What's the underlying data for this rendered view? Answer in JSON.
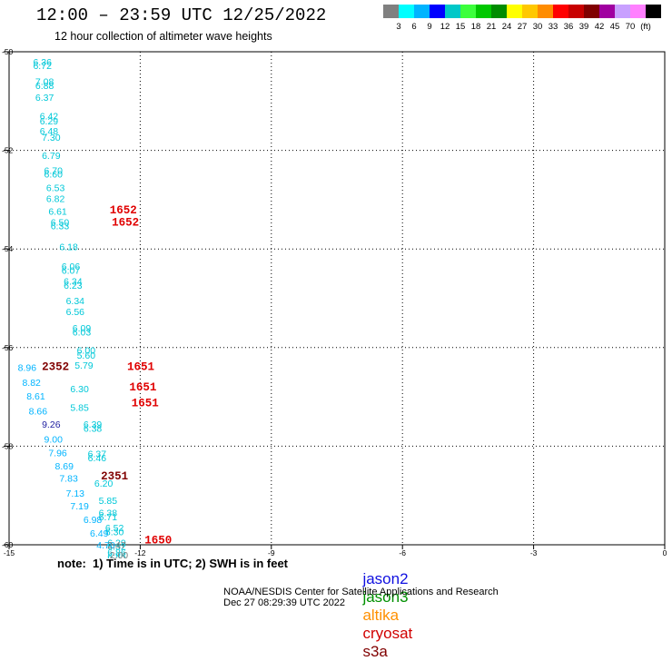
{
  "header": {
    "title": "12:00 – 23:59 UTC 12/25/2022",
    "subtitle": "12 hour collection of altimeter wave heights"
  },
  "colorbar": {
    "colors": [
      "#808080",
      "#00ffff",
      "#00b4ff",
      "#0000ff",
      "#00c8c8",
      "#3cff3c",
      "#00c800",
      "#008c00",
      "#ffff00",
      "#ffc800",
      "#ff8c00",
      "#ff0000",
      "#c80000",
      "#800000",
      "#a000a0",
      "#c8a0ff",
      "#ff80ff",
      "#000000"
    ],
    "labels": [
      "3",
      "6",
      "9",
      "12",
      "15",
      "18",
      "21",
      "24",
      "27",
      "30",
      "33",
      "36",
      "39",
      "42",
      "45",
      "70",
      "(ft)"
    ]
  },
  "chart_data": {
    "type": "scatter",
    "title": "12:00 – 23:59 UTC 12/25/2022",
    "xlim": [
      -15,
      0
    ],
    "ylim": [
      -60,
      -50
    ],
    "xticks": [
      "-15",
      "-12",
      "-9",
      "-6",
      "-3",
      "0"
    ],
    "yticks": [
      "-50",
      "-52",
      "-54",
      "-56",
      "-58",
      "-60"
    ],
    "grid": true,
    "series": [
      {
        "name": "jason3",
        "color": "#00c8d8",
        "points": [
          {
            "x": -14.45,
            "y": -50.2,
            "label": "6.36"
          },
          {
            "x": -14.45,
            "y": -50.28,
            "label": "6.72"
          },
          {
            "x": -14.4,
            "y": -50.6,
            "label": "7.08"
          },
          {
            "x": -14.4,
            "y": -50.68,
            "label": "6.88"
          },
          {
            "x": -14.4,
            "y": -50.92,
            "label": "6.37"
          },
          {
            "x": -14.3,
            "y": -51.3,
            "label": "6.42"
          },
          {
            "x": -14.3,
            "y": -51.4,
            "label": "6.29"
          },
          {
            "x": -14.3,
            "y": -51.6,
            "label": "6.48"
          },
          {
            "x": -14.25,
            "y": -51.73,
            "label": "7.30"
          },
          {
            "x": -14.25,
            "y": -52.1,
            "label": "6.79"
          },
          {
            "x": -14.2,
            "y": -52.4,
            "label": "6.70"
          },
          {
            "x": -14.2,
            "y": -52.48,
            "label": "6.60"
          },
          {
            "x": -14.15,
            "y": -52.75,
            "label": "6.53"
          },
          {
            "x": -14.15,
            "y": -52.97,
            "label": "6.82"
          },
          {
            "x": -14.1,
            "y": -53.23,
            "label": "6.61"
          },
          {
            "x": -14.05,
            "y": -53.45,
            "label": "6.50"
          },
          {
            "x": -14.05,
            "y": -53.53,
            "label": "6.33"
          },
          {
            "x": -13.85,
            "y": -53.95,
            "label": "6.18"
          },
          {
            "x": -13.8,
            "y": -54.35,
            "label": "6.06"
          },
          {
            "x": -13.8,
            "y": -54.43,
            "label": "6.07"
          },
          {
            "x": -13.75,
            "y": -54.65,
            "label": "6.34"
          },
          {
            "x": -13.75,
            "y": -54.73,
            "label": "6.23"
          },
          {
            "x": -13.7,
            "y": -55.05,
            "label": "6.34"
          },
          {
            "x": -13.7,
            "y": -55.27,
            "label": "6.56"
          },
          {
            "x": -13.55,
            "y": -55.6,
            "label": "6.09"
          },
          {
            "x": -13.55,
            "y": -55.68,
            "label": "6.03"
          },
          {
            "x": -13.45,
            "y": -56.05,
            "label": "6.00"
          },
          {
            "x": -13.45,
            "y": -56.15,
            "label": "5.60"
          },
          {
            "x": -13.5,
            "y": -56.35,
            "label": "5.79"
          },
          {
            "x": -13.6,
            "y": -56.83,
            "label": "6.30"
          },
          {
            "x": -13.6,
            "y": -57.21,
            "label": "5.85"
          },
          {
            "x": -13.3,
            "y": -57.55,
            "label": "6.39"
          },
          {
            "x": -13.3,
            "y": -57.63,
            "label": "6.38"
          },
          {
            "x": -13.2,
            "y": -58.15,
            "label": "6.37"
          },
          {
            "x": -13.2,
            "y": -58.23,
            "label": "6.46"
          },
          {
            "x": -13.05,
            "y": -58.75,
            "label": "6.20"
          },
          {
            "x": -12.95,
            "y": -59.1,
            "label": "5.85"
          },
          {
            "x": -12.95,
            "y": -59.35,
            "label": "6.38"
          },
          {
            "x": -12.95,
            "y": -59.43,
            "label": "6.71"
          },
          {
            "x": -12.8,
            "y": -59.65,
            "label": "6.52"
          },
          {
            "x": -12.8,
            "y": -59.73,
            "label": "6.30"
          },
          {
            "x": -12.75,
            "y": -59.95,
            "label": "6.29"
          },
          {
            "x": -12.75,
            "y": -60.03,
            "label": "6.32"
          },
          {
            "x": -12.75,
            "y": -60.15,
            "label": "6.86"
          },
          {
            "x": -12.75,
            "y": -60.23,
            "label": "6.85"
          }
        ]
      },
      {
        "name": "jason2",
        "color": "#00b4ff",
        "points": [
          {
            "x": -14.8,
            "y": -56.4,
            "label": "8.96"
          },
          {
            "x": -14.7,
            "y": -56.7,
            "label": "8.82"
          },
          {
            "x": -14.6,
            "y": -56.98,
            "label": "8.61"
          },
          {
            "x": -14.55,
            "y": -57.28,
            "label": "8.66"
          },
          {
            "x": -14.2,
            "y": -57.85,
            "label": "9.00"
          },
          {
            "x": -14.1,
            "y": -58.13,
            "label": "7.96"
          },
          {
            "x": -13.95,
            "y": -58.4,
            "label": "8.69"
          },
          {
            "x": -13.85,
            "y": -58.65,
            "label": "7.83"
          },
          {
            "x": -13.7,
            "y": -58.95,
            "label": "7.13"
          },
          {
            "x": -13.6,
            "y": -59.21,
            "label": "7.19"
          },
          {
            "x": -13.3,
            "y": -59.48,
            "label": "6.98"
          },
          {
            "x": -13.15,
            "y": -59.76,
            "label": "6.49"
          },
          {
            "x": -13.0,
            "y": -60.0,
            "label": "4.70"
          }
        ]
      },
      {
        "name": "cryosat",
        "color": "#e00000",
        "points": [
          {
            "x": -12.7,
            "y": -53.2,
            "label": "1652"
          },
          {
            "x": -12.65,
            "y": -53.45,
            "label": "1652"
          },
          {
            "x": -12.3,
            "y": -56.38,
            "label": "1651"
          },
          {
            "x": -12.25,
            "y": -56.8,
            "label": "1651"
          },
          {
            "x": -12.2,
            "y": -57.12,
            "label": "1651"
          },
          {
            "x": -11.9,
            "y": -59.9,
            "label": "1650"
          }
        ]
      },
      {
        "name": "s3a",
        "color": "#800000",
        "points": [
          {
            "x": -14.25,
            "y": -56.38,
            "label": "2352"
          },
          {
            "x": -12.9,
            "y": -58.6,
            "label": "2351"
          }
        ]
      },
      {
        "name": "altika",
        "color": "#c06000",
        "points": []
      },
      {
        "name": "other",
        "color": "#808080",
        "points": [
          {
            "x": -12.75,
            "y": -60.0,
            "label": "2.47"
          },
          {
            "x": -12.7,
            "y": -60.2,
            "label": "2.00"
          }
        ]
      },
      {
        "name": "dark",
        "color": "#2020a0",
        "points": [
          {
            "x": -14.25,
            "y": -57.55,
            "label": "9.26"
          }
        ]
      }
    ]
  },
  "notes": {
    "note_text": "note:  1) Time is in UTC; 2) SWH is in feet"
  },
  "legend": [
    {
      "label": "jason2",
      "color": "#1010e0"
    },
    {
      "label": "jason3",
      "color": "#009000"
    },
    {
      "label": "altika",
      "color": "#ff9000"
    },
    {
      "label": "cryosat",
      "color": "#d00000"
    },
    {
      "label": "s3a",
      "color": "#800000"
    }
  ],
  "footer": {
    "credit": "NOAA/NESDIS Center for Satellite Applications and Research",
    "timestamp": "Dec 27 08:29:39 UTC 2022"
  }
}
